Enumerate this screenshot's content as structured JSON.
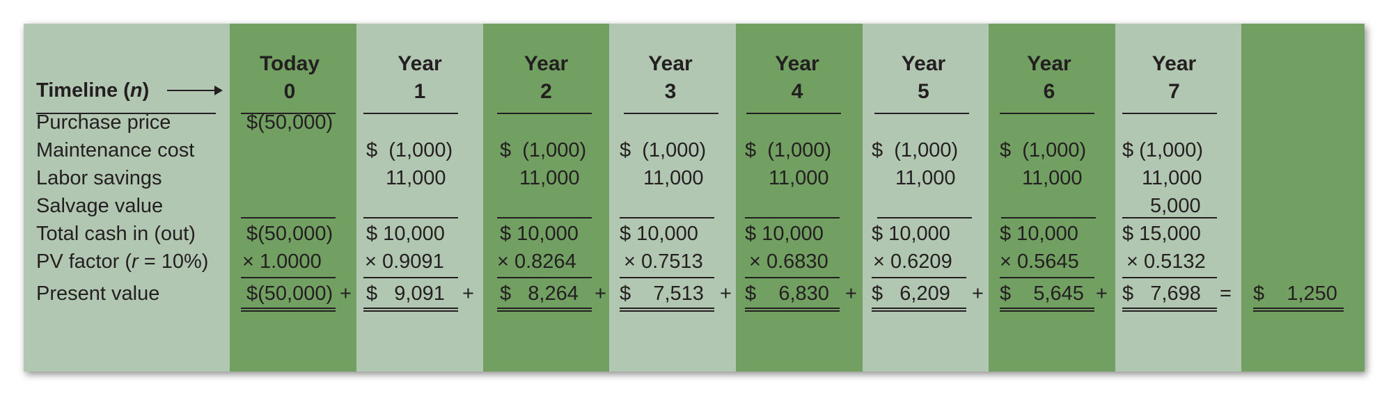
{
  "table": {
    "timeline_label": "Timeline (",
    "timeline_var": "n",
    "timeline_close": ")",
    "columns": [
      {
        "top": "Today",
        "bottom": "0"
      },
      {
        "top": "Year",
        "bottom": "1"
      },
      {
        "top": "Year",
        "bottom": "2"
      },
      {
        "top": "Year",
        "bottom": "3"
      },
      {
        "top": "Year",
        "bottom": "4"
      },
      {
        "top": "Year",
        "bottom": "5"
      },
      {
        "top": "Year",
        "bottom": "6"
      },
      {
        "top": "Year",
        "bottom": "7"
      }
    ],
    "row_labels": {
      "purchase": "Purchase price",
      "maintenance": "Maintenance cost",
      "labor": "Labor savings",
      "salvage": "Salvage value",
      "total": "Total cash in (out)",
      "pv_factor_a": "PV factor (",
      "pv_factor_r": "r",
      "pv_factor_b": " = 10%)",
      "present_value": "Present value"
    },
    "purchase": [
      "$(50,000)"
    ],
    "maintenance": [
      "$  (1,000)",
      "$  (1,000)",
      "$  (1,000)",
      "$  (1,000)",
      "$  (1,000)",
      "$  (1,000)",
      "$ (1,000)"
    ],
    "labor": [
      "11,000",
      "11,000",
      "11,000",
      "11,000",
      "11,000",
      "11,000",
      "11,000"
    ],
    "salvage": [
      "5,000"
    ],
    "total": [
      "$(50,000)",
      "$ 10,000",
      "$ 10,000",
      "$ 10,000",
      "$ 10,000",
      "$ 10,000",
      "$ 10,000",
      "$ 15,000"
    ],
    "pv_factor": [
      "× 1.0000",
      "× 0.9091",
      "× 0.8264",
      "× 0.7513",
      "× 0.6830",
      "× 0.6209",
      "× 0.5645",
      "× 0.5132"
    ],
    "present_value": [
      "$(50,000)",
      "$   9,091",
      "$   8,264",
      "$    7,513",
      "$    6,830",
      "$   6,209",
      "$    5,645",
      "$   7,698"
    ],
    "operators": [
      "+",
      "+",
      "+",
      "+",
      "+",
      "+",
      "+",
      "="
    ],
    "npv": "$    1,250"
  },
  "colors": {
    "light": "#b2c7b1",
    "dark": "#729f62",
    "text": "#231f20"
  }
}
